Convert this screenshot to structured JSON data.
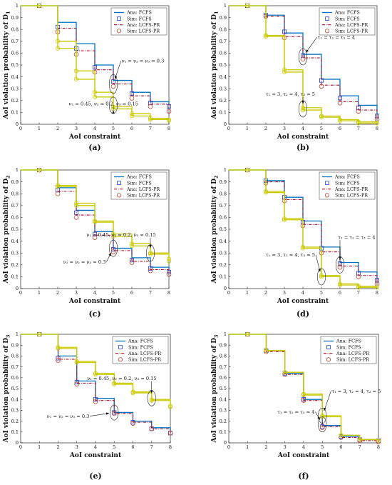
{
  "colors": {
    "ana_fcfs": "#0072BD",
    "ana_lcfs": "#A2142F",
    "sim_fcfs": "#1f3fd6",
    "sim_lcfs": "#c2402f",
    "second_set": "#c9c900",
    "marker_fill": "#ffffff"
  },
  "legend_labels": [
    "Ana: FCFS",
    "Sim: FCFS",
    "Ana: LCFS-PR",
    "Sim: LCFS-PR"
  ],
  "chart_data": [
    {
      "panel": "(a)",
      "type": "line",
      "step": true,
      "xlabel": "AoI constraint",
      "ylabel": "AoI violation probability of D",
      "ylabel_sub": "1",
      "xlim": [
        0,
        8
      ],
      "ylim": [
        0,
        1
      ],
      "xticks": [
        "0",
        "1",
        "2",
        "3",
        "4",
        "5",
        "6",
        "7",
        "8"
      ],
      "yticks": [
        "0",
        "0.1",
        "0.2",
        "0.3",
        "0.4",
        "0.5",
        "0.6",
        "0.7",
        "0.8",
        "0.9",
        "1"
      ],
      "grid": false,
      "legend_position": "top-right",
      "x": [
        0,
        1,
        2,
        3,
        4,
        5,
        6,
        7,
        8
      ],
      "series": [
        {
          "name": "Ana: FCFS",
          "set": "primary",
          "style": "ana_fcfs",
          "values": [
            1,
            1,
            0.86,
            0.68,
            0.5,
            0.37,
            0.27,
            0.19,
            0.17
          ]
        },
        {
          "name": "Sim: FCFS",
          "set": "primary",
          "style": "sim_fcfs",
          "values": [
            1,
            1,
            0.82,
            0.64,
            0.48,
            0.36,
            0.26,
            0.18,
            0.15
          ]
        },
        {
          "name": "Ana: LCFS-PR",
          "set": "primary",
          "style": "ana_lcfs",
          "values": [
            1,
            1,
            0.81,
            0.62,
            0.46,
            0.34,
            0.24,
            0.17,
            0.13
          ]
        },
        {
          "name": "Sim: LCFS-PR",
          "set": "primary",
          "style": "sim_lcfs",
          "values": [
            1,
            1,
            0.78,
            0.59,
            0.44,
            0.32,
            0.22,
            0.15,
            0.11
          ]
        },
        {
          "set": "secondary",
          "style": "second_line",
          "values": [
            1,
            1,
            0.7,
            0.45,
            0.27,
            0.15,
            0.09,
            0.05,
            0.04
          ]
        },
        {
          "set": "secondary",
          "style": "second_line",
          "values": [
            1,
            1,
            0.64,
            0.38,
            0.23,
            0.13,
            0.07,
            0.04,
            0.03
          ]
        }
      ],
      "annotations": [
        {
          "text": "ν₁ = ν₂ = ν₃ = 0.3",
          "text_xy": [
            5.45,
            0.52
          ],
          "ellipse_xy": [
            5,
            0.34
          ],
          "ellipse_rx": 0.22,
          "ellipse_ry": 0.08
        },
        {
          "text": "ν₁ = 0.45, ν₂ = 0.2, ν₃ = 0.15",
          "text_xy": [
            2.6,
            0.16
          ],
          "ellipse_xy": [
            5,
            0.16
          ],
          "ellipse_rx": 0.22,
          "ellipse_ry": 0.07
        }
      ]
    },
    {
      "panel": "(b)",
      "type": "line",
      "step": true,
      "xlabel": "AoI constraint",
      "ylabel": "AoI violation probability of D",
      "ylabel_sub": "1",
      "xlim": [
        0,
        8
      ],
      "ylim": [
        0,
        1
      ],
      "xticks": [
        "0",
        "1",
        "2",
        "3",
        "4",
        "5",
        "6",
        "7",
        "8"
      ],
      "yticks": [
        "0",
        "0.1",
        "0.2",
        "0.3",
        "0.4",
        "0.5",
        "0.6",
        "0.7",
        "0.8",
        "0.9",
        "1"
      ],
      "grid": false,
      "legend_position": "top-right",
      "x": [
        0,
        1,
        2,
        3,
        4,
        5,
        6,
        7,
        8
      ],
      "series": [
        {
          "name": "Ana: FCFS",
          "set": "primary",
          "style": "ana_fcfs",
          "values": [
            1,
            1,
            0.92,
            0.77,
            0.59,
            0.38,
            0.24,
            0.16,
            0.08
          ]
        },
        {
          "name": "Sim: FCFS",
          "set": "primary",
          "style": "sim_fcfs",
          "values": [
            1,
            1,
            0.92,
            0.78,
            0.58,
            0.37,
            0.22,
            0.14,
            0.07
          ]
        },
        {
          "name": "Ana: LCFS-PR",
          "set": "primary",
          "style": "ana_lcfs",
          "values": [
            1,
            1,
            0.91,
            0.74,
            0.56,
            0.33,
            0.19,
            0.12,
            0.05
          ]
        },
        {
          "name": "Sim: LCFS-PR",
          "set": "primary",
          "style": "sim_lcfs",
          "values": [
            1,
            1,
            0.91,
            0.73,
            0.55,
            0.32,
            0.18,
            0.11,
            0.04
          ]
        },
        {
          "set": "secondary",
          "style": "second_line",
          "values": [
            1,
            1,
            0.75,
            0.46,
            0.14,
            0.07,
            0.04,
            0.02,
            0.01
          ]
        },
        {
          "set": "secondary",
          "style": "second_line",
          "values": [
            1,
            1,
            0.74,
            0.44,
            0.12,
            0.06,
            0.03,
            0.01,
            0.01
          ]
        }
      ],
      "annotations": [
        {
          "text": "τ₁ = τ₂ = τ₃ = 4",
          "text_xy": [
            4.8,
            0.72
          ],
          "ellipse_xy": [
            4,
            0.57
          ],
          "ellipse_rx": 0.22,
          "ellipse_ry": 0.07
        },
        {
          "text": "τ₁ = 3, τ₂ = 4, τ₃ = 5",
          "text_xy": [
            2.0,
            0.24
          ],
          "ellipse_xy": [
            4,
            0.13
          ],
          "ellipse_rx": 0.22,
          "ellipse_ry": 0.07
        }
      ]
    },
    {
      "panel": "(c)",
      "type": "line",
      "step": true,
      "xlabel": "AoI constraint",
      "ylabel": "AoI violation probability of D",
      "ylabel_sub": "2",
      "xlim": [
        0,
        8
      ],
      "ylim": [
        0,
        1
      ],
      "xticks": [
        "0",
        "1",
        "2",
        "3",
        "4",
        "5",
        "6",
        "7",
        "8"
      ],
      "yticks": [
        "0",
        "0.1",
        "0.2",
        "0.3",
        "0.4",
        "0.5",
        "0.6",
        "0.7",
        "0.8",
        "0.9",
        "1"
      ],
      "grid": false,
      "legend_position": "top-right",
      "x": [
        0,
        1,
        2,
        3,
        4,
        5,
        6,
        7,
        8
      ],
      "series": [
        {
          "name": "Ana: FCFS",
          "set": "primary",
          "style": "ana_fcfs",
          "values": [
            1,
            1,
            0.85,
            0.66,
            0.48,
            0.34,
            0.26,
            0.18,
            0.15
          ]
        },
        {
          "name": "Sim: FCFS",
          "set": "primary",
          "style": "sim_fcfs",
          "values": [
            1,
            1,
            0.83,
            0.64,
            0.46,
            0.33,
            0.24,
            0.17,
            0.14
          ]
        },
        {
          "name": "Ana: LCFS-PR",
          "set": "primary",
          "style": "ana_lcfs",
          "values": [
            1,
            1,
            0.82,
            0.62,
            0.45,
            0.32,
            0.23,
            0.16,
            0.13
          ]
        },
        {
          "name": "Sim: LCFS-PR",
          "set": "primary",
          "style": "sim_lcfs",
          "values": [
            1,
            1,
            0.8,
            0.6,
            0.43,
            0.31,
            0.22,
            0.15,
            0.12
          ]
        },
        {
          "set": "secondary",
          "style": "second_line",
          "values": [
            1,
            1,
            0.87,
            0.72,
            0.57,
            0.46,
            0.38,
            0.3,
            0.25
          ]
        },
        {
          "set": "secondary",
          "style": "second_line",
          "values": [
            1,
            1,
            0.86,
            0.7,
            0.56,
            0.44,
            0.36,
            0.29,
            0.23
          ]
        }
      ],
      "annotations": [
        {
          "text": "ν₁ = 0.45, ν₂ = 0.2, ν₃ = 0.15",
          "text_xy": [
            3.55,
            0.44
          ],
          "ellipse_xy": [
            7,
            0.3
          ],
          "ellipse_rx": 0.22,
          "ellipse_ry": 0.07
        },
        {
          "text": "ν₁ = ν₂ = ν₃ = 0.3",
          "text_xy": [
            2.3,
            0.21
          ],
          "ellipse_xy": [
            5,
            0.34
          ],
          "ellipse_rx": 0.22,
          "ellipse_ry": 0.07
        }
      ]
    },
    {
      "panel": "(d)",
      "type": "line",
      "step": true,
      "xlabel": "AoI constraint",
      "ylabel": "AoI violation probability of D",
      "ylabel_sub": "2",
      "xlim": [
        0,
        8
      ],
      "ylim": [
        0,
        1
      ],
      "xticks": [
        "0",
        "1",
        "2",
        "3",
        "4",
        "5",
        "6",
        "7",
        "8"
      ],
      "yticks": [
        "0",
        "0.1",
        "0.2",
        "0.3",
        "0.4",
        "0.5",
        "0.6",
        "0.7",
        "0.8",
        "0.9",
        "1"
      ],
      "grid": false,
      "legend_position": "top-right",
      "x": [
        0,
        1,
        2,
        3,
        4,
        5,
        6,
        7,
        8
      ],
      "series": [
        {
          "name": "Ana: FCFS",
          "set": "primary",
          "style": "ana_fcfs",
          "values": [
            1,
            1,
            0.91,
            0.77,
            0.57,
            0.35,
            0.22,
            0.14,
            0.08
          ]
        },
        {
          "name": "Sim: FCFS",
          "set": "primary",
          "style": "sim_fcfs",
          "values": [
            1,
            1,
            0.91,
            0.77,
            0.56,
            0.34,
            0.21,
            0.13,
            0.07
          ]
        },
        {
          "name": "Ana: LCFS-PR",
          "set": "primary",
          "style": "ana_lcfs",
          "values": [
            1,
            1,
            0.9,
            0.75,
            0.54,
            0.31,
            0.19,
            0.11,
            0.05
          ]
        },
        {
          "name": "Sim: LCFS-PR",
          "set": "primary",
          "style": "sim_lcfs",
          "values": [
            1,
            1,
            0.89,
            0.74,
            0.53,
            0.3,
            0.18,
            0.1,
            0.04
          ]
        },
        {
          "set": "secondary",
          "style": "second_line",
          "values": [
            1,
            1,
            0.82,
            0.59,
            0.35,
            0.11,
            0.04,
            0.02,
            0.01
          ]
        },
        {
          "set": "secondary",
          "style": "second_line",
          "values": [
            1,
            1,
            0.81,
            0.58,
            0.34,
            0.1,
            0.03,
            0.01,
            0.01
          ]
        }
      ],
      "annotations": [
        {
          "text": "τ₁ = τ₂ = τ₃ = 4",
          "text_xy": [
            5.9,
            0.42
          ],
          "ellipse_xy": [
            6,
            0.2
          ],
          "ellipse_rx": 0.22,
          "ellipse_ry": 0.07
        },
        {
          "text": "τ₁ = 3, τ₂ = 4, τ₃ = 5",
          "text_xy": [
            2.0,
            0.27
          ],
          "ellipse_xy": [
            5,
            0.1
          ],
          "ellipse_rx": 0.22,
          "ellipse_ry": 0.07
        }
      ]
    },
    {
      "panel": "(e)",
      "type": "line",
      "step": true,
      "xlabel": "AoI constraint",
      "ylabel": "AoI violation probability of D",
      "ylabel_sub": "3",
      "xlim": [
        0,
        8
      ],
      "ylim": [
        0,
        1
      ],
      "xticks": [
        "0",
        "1",
        "2",
        "3",
        "4",
        "5",
        "6",
        "7",
        "8"
      ],
      "yticks": [
        "0",
        "0.1",
        "0.2",
        "0.3",
        "0.4",
        "0.5",
        "0.6",
        "0.7",
        "0.8",
        "0.9",
        "1"
      ],
      "grid": false,
      "legend_position": "top-right",
      "x": [
        0,
        1,
        2,
        3,
        4,
        5,
        6,
        7,
        8
      ],
      "series": [
        {
          "name": "Ana: FCFS",
          "set": "primary",
          "style": "ana_fcfs",
          "values": [
            1,
            1,
            0.8,
            0.57,
            0.41,
            0.28,
            0.2,
            0.14,
            0.1
          ]
        },
        {
          "name": "Sim: FCFS",
          "set": "primary",
          "style": "sim_fcfs",
          "values": [
            1,
            1,
            0.78,
            0.56,
            0.4,
            0.28,
            0.19,
            0.13,
            0.09
          ]
        },
        {
          "name": "Ana: LCFS-PR",
          "set": "primary",
          "style": "ana_lcfs",
          "values": [
            1,
            1,
            0.77,
            0.55,
            0.39,
            0.27,
            0.19,
            0.13,
            0.09
          ]
        },
        {
          "name": "Sim: LCFS-PR",
          "set": "primary",
          "style": "sim_lcfs",
          "values": [
            1,
            1,
            0.76,
            0.54,
            0.38,
            0.27,
            0.18,
            0.13,
            0.09
          ]
        },
        {
          "set": "secondary",
          "style": "second_line",
          "values": [
            1,
            1,
            0.88,
            0.75,
            0.64,
            0.55,
            0.47,
            0.4,
            0.34
          ]
        },
        {
          "set": "secondary",
          "style": "second_line",
          "values": [
            1,
            1,
            0.87,
            0.74,
            0.63,
            0.54,
            0.46,
            0.39,
            0.33
          ]
        }
      ],
      "annotations": [
        {
          "text": "ν₁ = 0.45, ν₂ = 0.2, ν₃ = 0.15",
          "text_xy": [
            3.55,
            0.58
          ],
          "ellipse_xy": [
            7,
            0.41
          ],
          "ellipse_rx": 0.22,
          "ellipse_ry": 0.07
        },
        {
          "text": "ν₁ = ν₂ = ν₃ = 0.3",
          "text_xy": [
            1.4,
            0.23
          ],
          "ellipse_xy": [
            5,
            0.28
          ],
          "ellipse_rx": 0.22,
          "ellipse_ry": 0.07
        }
      ]
    },
    {
      "panel": "(f)",
      "type": "line",
      "step": true,
      "xlabel": "AoI constraint",
      "ylabel": "AoI violation probability of D",
      "ylabel_sub": "3",
      "xlim": [
        0,
        8
      ],
      "ylim": [
        0,
        1
      ],
      "xticks": [
        "0",
        "1",
        "2",
        "3",
        "4",
        "5",
        "6",
        "7",
        "8"
      ],
      "yticks": [
        "0",
        "0.1",
        "0.2",
        "0.3",
        "0.4",
        "0.5",
        "0.6",
        "0.7",
        "0.8",
        "0.9",
        "1"
      ],
      "grid": false,
      "legend_position": "top-right",
      "x": [
        0,
        1,
        2,
        3,
        4,
        5,
        6,
        7,
        8
      ],
      "series": [
        {
          "name": "Ana: FCFS",
          "set": "primary",
          "style": "ana_fcfs",
          "values": [
            1,
            1,
            0.85,
            0.64,
            0.4,
            0.16,
            0.06,
            0.03,
            0.02
          ]
        },
        {
          "name": "Sim: FCFS",
          "set": "primary",
          "style": "sim_fcfs",
          "values": [
            1,
            1,
            0.85,
            0.64,
            0.4,
            0.15,
            0.06,
            0.03,
            0.02
          ]
        },
        {
          "name": "Ana: LCFS-PR",
          "set": "primary",
          "style": "ana_lcfs",
          "values": [
            1,
            1,
            0.84,
            0.63,
            0.39,
            0.15,
            0.05,
            0.02,
            0.01
          ]
        },
        {
          "name": "Sim: LCFS-PR",
          "set": "primary",
          "style": "sim_lcfs",
          "values": [
            1,
            1,
            0.84,
            0.63,
            0.39,
            0.14,
            0.05,
            0.02,
            0.01
          ]
        },
        {
          "set": "secondary",
          "style": "second_line",
          "values": [
            1,
            1,
            0.85,
            0.65,
            0.45,
            0.25,
            0.07,
            0.03,
            0.02
          ]
        },
        {
          "set": "secondary",
          "style": "second_line",
          "values": [
            1,
            1,
            0.85,
            0.65,
            0.44,
            0.24,
            0.07,
            0.03,
            0.02
          ]
        }
      ],
      "annotations": [
        {
          "text": "τ₁ = 3, τ₂ = 4, τ₃ = 5",
          "text_xy": [
            5.5,
            0.46
          ],
          "ellipse_xy": [
            5,
            0.25
          ],
          "ellipse_rx": 0.22,
          "ellipse_ry": 0.07
        },
        {
          "text": "τ₁ = τ₂ = τ₃ = 4",
          "text_xy": [
            2.6,
            0.27
          ],
          "ellipse_xy": [
            5,
            0.17
          ],
          "ellipse_rx": 0.22,
          "ellipse_ry": 0.07
        }
      ]
    }
  ]
}
